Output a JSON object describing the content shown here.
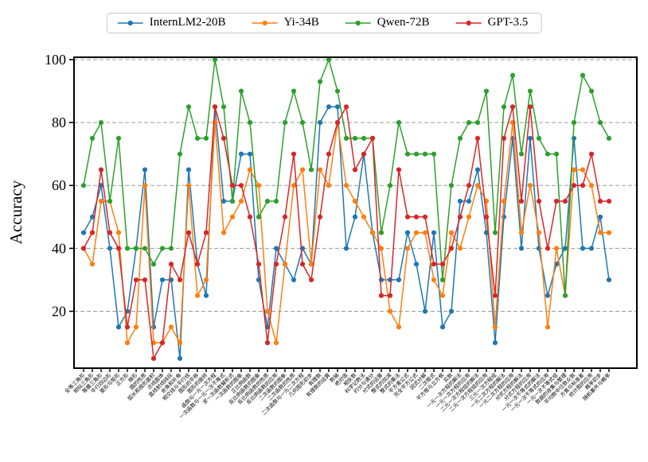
{
  "chart_data": {
    "type": "line",
    "title": "",
    "ylabel": "Accuracy",
    "ylim": [
      0,
      105
    ],
    "yticks": [
      20,
      40,
      60,
      80,
      100
    ],
    "grid": "horizontal-dashed",
    "legend_position": "top-center-horizontal",
    "marker": "circle",
    "categories": [
      "全等三角形",
      "相似三角形",
      "等腰三角形",
      "平行四边形",
      "菱形与矩形",
      "正方形",
      "梯形",
      "圆的性质",
      "弧长和扇形面积",
      "点线面体",
      "直线射线线段",
      "余角和补角",
      "相交线与平行线",
      "图形的平移",
      "图形的旋转",
      "函数与一元一次方程",
      "一次函数与一元一次不等式",
      "求一次函数解析式",
      "一次函数的图象",
      "正比例函数",
      "反比例函数的图象",
      "反比例函数的性质",
      "反比例函数的应用",
      "二次函数的图象",
      "二次函数的性质",
      "二次函数与一元二次方程",
      "几何图形初步",
      "有理数",
      "有理数的运算",
      "数轴",
      "绝对值",
      "相反数",
      "科学记数法",
      "约分与通分",
      "分式的运算",
      "整式的加减",
      "整式的乘法",
      "平方差公式",
      "完全平方公式",
      "因式分解",
      "二次根式",
      "平方根与立方根",
      "实数",
      "一元一次方程的解法",
      "一元一次方程的应用",
      "二元一次方程组的解法",
      "二元一次方程组的应用",
      "三元一次方程组",
      "一元二次方程的解法",
      "一元二次方程的应用",
      "分式方程的解法",
      "分式方程的应用",
      "一元一次不等式的解法",
      "一元一次不等式的应用",
      "一元一次不等式组",
      "数据的收集与整理",
      "平均数中位数众数",
      "方差与标准差",
      "统计图的应用",
      "概率初步",
      "随机事件与概率"
    ],
    "series": [
      {
        "name": "InternLM2-20B",
        "color": "#1f77b4",
        "values": [
          45,
          50,
          60,
          40,
          15,
          20,
          40,
          65,
          15,
          30,
          30,
          5,
          65,
          35,
          25,
          85,
          55,
          55,
          70,
          70,
          30,
          15,
          40,
          35,
          30,
          40,
          35,
          80,
          85,
          85,
          40,
          50,
          70,
          45,
          30,
          30,
          30,
          45,
          35,
          20,
          45,
          15,
          20,
          55,
          55,
          65,
          45,
          10,
          50,
          75,
          40,
          75,
          40,
          25,
          35,
          40,
          75,
          40,
          40,
          50,
          30
        ]
      },
      {
        "name": "Yi-34B",
        "color": "#ff7f0e",
        "values": [
          40,
          35,
          55,
          55,
          45,
          10,
          15,
          60,
          10,
          10,
          15,
          10,
          60,
          25,
          30,
          80,
          45,
          50,
          55,
          65,
          60,
          20,
          10,
          35,
          60,
          65,
          35,
          65,
          60,
          80,
          60,
          55,
          50,
          45,
          40,
          20,
          15,
          40,
          45,
          45,
          30,
          25,
          45,
          40,
          50,
          60,
          55,
          15,
          55,
          80,
          45,
          60,
          45,
          15,
          40,
          25,
          65,
          65,
          60,
          45,
          45
        ]
      },
      {
        "name": "Qwen-72B",
        "color": "#2ca02c",
        "values": [
          60,
          75,
          80,
          55,
          75,
          40,
          40,
          40,
          35,
          40,
          40,
          70,
          85,
          75,
          75,
          100,
          85,
          55,
          90,
          80,
          50,
          55,
          55,
          80,
          90,
          80,
          65,
          93,
          100,
          90,
          75,
          75,
          75,
          75,
          45,
          60,
          80,
          70,
          70,
          70,
          70,
          30,
          60,
          75,
          80,
          80,
          90,
          45,
          85,
          95,
          70,
          90,
          75,
          70,
          70,
          25,
          80,
          95,
          90,
          80,
          75
        ]
      },
      {
        "name": "GPT-3.5",
        "color": "#d62728",
        "values": [
          40,
          45,
          65,
          45,
          40,
          15,
          30,
          30,
          5,
          10,
          35,
          30,
          45,
          35,
          45,
          85,
          75,
          60,
          60,
          50,
          35,
          10,
          35,
          50,
          70,
          35,
          30,
          50,
          70,
          80,
          85,
          65,
          70,
          75,
          25,
          25,
          65,
          50,
          50,
          50,
          35,
          35,
          40,
          50,
          60,
          75,
          50,
          25,
          75,
          85,
          55,
          85,
          55,
          40,
          55,
          55,
          60,
          60,
          70,
          55,
          55
        ]
      }
    ]
  }
}
